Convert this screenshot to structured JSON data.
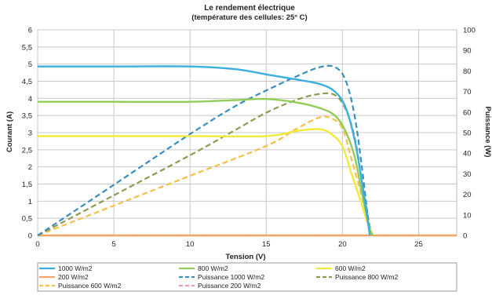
{
  "chart_data": {
    "type": "line",
    "title": "Le rendement électrique",
    "subtitle": "(température des cellules: 25° C)",
    "xlabel": "Tension (V)",
    "ylabel": "Courant (A)",
    "y2label": "Puissance (W)",
    "xlim": [
      0,
      27.5
    ],
    "ylim": [
      0,
      6
    ],
    "y2lim": [
      0,
      100
    ],
    "xticks": [
      "0",
      "5",
      "10",
      "15",
      "20",
      "25"
    ],
    "xtick_values": [
      0,
      5,
      10,
      15,
      20,
      25
    ],
    "yticks": [
      "0",
      "0,5",
      "1",
      "1,5",
      "2",
      "2,5",
      "3",
      "3,5",
      "4",
      "4,5",
      "5",
      "5,5",
      "6"
    ],
    "ytick_values": [
      0,
      0.5,
      1,
      1.5,
      2,
      2.5,
      3,
      3.5,
      4,
      4.5,
      5,
      5.5,
      6
    ],
    "y2ticks": [
      "0",
      "10",
      "20",
      "30",
      "40",
      "50",
      "60",
      "70",
      "80",
      "90",
      "100"
    ],
    "y2tick_values": [
      0,
      10,
      20,
      30,
      40,
      50,
      60,
      70,
      80,
      90,
      100
    ],
    "grid": true,
    "legend_position": "bottom",
    "series": [
      {
        "name": "1000 W/m2",
        "axis": "left",
        "color": "#3aafe0",
        "dash": false,
        "x": [
          0,
          5,
          10,
          13,
          15,
          17,
          18.5,
          19.5,
          20.2,
          20.8,
          21.3,
          21.7,
          21.8
        ],
        "y": [
          4.93,
          4.93,
          4.93,
          4.85,
          4.7,
          4.55,
          4.42,
          4.2,
          3.75,
          2.8,
          1.5,
          0.3,
          0
        ]
      },
      {
        "name": "800 W/m2",
        "axis": "left",
        "color": "#92cd57",
        "dash": false,
        "x": [
          0,
          5,
          10,
          13,
          15,
          17,
          18.5,
          19.5,
          20.2,
          20.8,
          21.3,
          21.8,
          22
        ],
        "y": [
          3.9,
          3.9,
          3.9,
          3.95,
          3.98,
          3.88,
          3.72,
          3.5,
          3.05,
          2.3,
          1.2,
          0.2,
          0
        ]
      },
      {
        "name": "600 W/m2",
        "axis": "left",
        "color": "#f2ea3a",
        "dash": false,
        "x": [
          0,
          5,
          10,
          15,
          17,
          18.5,
          19.3,
          20,
          20.6,
          21.2,
          21.7,
          22
        ],
        "y": [
          2.9,
          2.9,
          2.9,
          2.9,
          3.05,
          3.1,
          2.95,
          2.6,
          1.8,
          1.0,
          0.3,
          0
        ]
      },
      {
        "name": "200 W/m2",
        "axis": "left",
        "color": "#f4a464",
        "dash": false,
        "x": [
          0,
          27.5
        ],
        "y": [
          0,
          0
        ]
      },
      {
        "name": "Puissance 1000 W/m2",
        "axis": "right",
        "color": "#3a8fbf",
        "dash": true,
        "x": [
          0,
          5,
          10,
          13,
          15,
          17,
          18.5,
          19.5,
          20.2,
          20.8,
          21.3,
          21.7,
          21.8
        ],
        "y": [
          0,
          24.6,
          49.3,
          63,
          70.5,
          77.4,
          81.8,
          81.9,
          75.7,
          58.2,
          31.9,
          6.5,
          0
        ]
      },
      {
        "name": "Puissance 800 W/m2",
        "axis": "right",
        "color": "#8f9a50",
        "dash": true,
        "x": [
          0,
          5,
          10,
          13,
          15,
          17,
          18.5,
          19.5,
          20.2,
          20.8,
          21.3,
          21.8,
          22
        ],
        "y": [
          0,
          19.5,
          39,
          51.4,
          59.7,
          66,
          68.8,
          68.3,
          61.6,
          47.8,
          25.6,
          4.4,
          0
        ]
      },
      {
        "name": "Puissance 600 W/m2",
        "axis": "right",
        "color": "#f6c04a",
        "dash": true,
        "x": [
          0,
          5,
          10,
          15,
          17,
          18.5,
          19.3,
          20,
          20.6,
          21.2,
          21.7,
          22
        ],
        "y": [
          0,
          14.5,
          29,
          43.5,
          51.9,
          57.4,
          56.9,
          52,
          37.1,
          21.2,
          6.5,
          0
        ]
      },
      {
        "name": "Puissance 200 W/m2",
        "axis": "right",
        "color": "#e9a0a8",
        "dash": true,
        "x": [
          0,
          27.5
        ],
        "y": [
          0,
          0
        ]
      }
    ]
  }
}
